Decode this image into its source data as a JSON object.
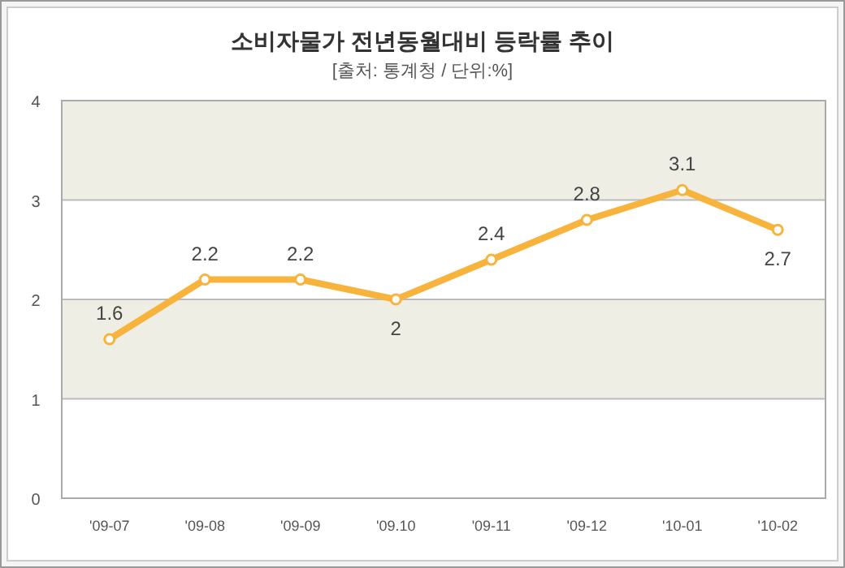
{
  "chart_data": {
    "type": "line",
    "title": "소비자물가 전년동월대비 등락률 추이",
    "subtitle": "[출처: 통계청 / 단위:%]",
    "categories": [
      "'09-07",
      "'09-08",
      "'09-09",
      "'09.10",
      "'09-11",
      "'09-12",
      "'10-01",
      "'10-02"
    ],
    "series": [
      {
        "color": "#f7b33b",
        "values": [
          1.6,
          2.2,
          2.2,
          2,
          2.4,
          2.8,
          3.1,
          2.7
        ]
      }
    ],
    "ylim": [
      0,
      4
    ],
    "yticks": [
      0,
      1,
      2,
      3,
      4
    ],
    "grid": "y",
    "marker": "circle",
    "line_style": "solid",
    "data_labels": true,
    "bands": [
      {
        "axis": "y",
        "from": 3,
        "to": 4,
        "color": "#eeeee4"
      },
      {
        "axis": "y",
        "from": 1,
        "to": 2,
        "color": "#eeeee4"
      }
    ]
  }
}
